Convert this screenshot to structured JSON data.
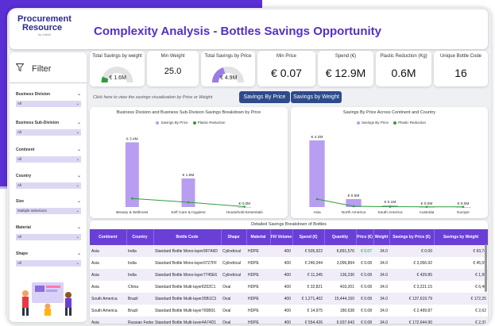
{
  "header": {
    "logo_line1": "Procurement",
    "logo_line2": "Resource",
    "logo_line3": "by Infiniti",
    "title": "Complexity Analysis - Bottles Savings Opportunity"
  },
  "filters": {
    "title": "Filter",
    "groups": [
      {
        "label": "Business Division",
        "value": "All"
      },
      {
        "label": "Business Sub-Division",
        "value": "All"
      },
      {
        "label": "Continent",
        "value": "All"
      },
      {
        "label": "Country",
        "value": "All"
      },
      {
        "label": "Size",
        "value": "Multiple selections"
      },
      {
        "label": "Material",
        "value": "All"
      },
      {
        "label": "Shape",
        "value": "All"
      }
    ]
  },
  "kpis": [
    {
      "label": "Total Savings by weight",
      "value": "€ 1.6M",
      "gauge": 0.12
    },
    {
      "label": "Min Weight",
      "value": "25.0"
    },
    {
      "label": "Total Savings by Price",
      "value": "€ 4.9M",
      "gauge": 0.4
    },
    {
      "label": "Min Price",
      "value": "€ 0.07"
    },
    {
      "label": "Spend (€)",
      "value": "€ 12.9M"
    },
    {
      "label": "Plastic Reduction (Kg)",
      "value": "0.6M"
    },
    {
      "label": "Unique Bottle Code",
      "value": "16"
    }
  ],
  "toolbar": {
    "hint": "Click here to view the savings visualization by Price or Weight",
    "by_price": "Savings By Price",
    "by_weight": "Savings by Weight"
  },
  "colors": {
    "bar": "#b79ef0",
    "line": "#2e9e3a",
    "accent": "#6a3fd6"
  },
  "chart_data": [
    {
      "type": "bar",
      "title": "Business Division and Business Sub-Division Savings Breakdown by Price",
      "legend": [
        "Savings By Price",
        "Plastic Reduction"
      ],
      "categories": [
        "Beauty & Wellness",
        "Self Care & Hygiene",
        "Household Essentials"
      ],
      "series": [
        {
          "name": "Savings By Price",
          "values": [
            3.4,
            1.5,
            0.0
          ],
          "labels": [
            "€ 3.4M",
            "€ 1.5M",
            "€ 0.0M"
          ]
        },
        {
          "name": "Plastic Reduction",
          "values": [
            0.45,
            0.25,
            0.02
          ]
        }
      ],
      "ylim": [
        0,
        4.0
      ]
    },
    {
      "type": "bar",
      "title": "Savings By Price Across Continent and Country",
      "legend": [
        "Savings By Price",
        "Plastic Reduction"
      ],
      "categories": [
        "Asia",
        "North America",
        "South America",
        "Australia",
        "Europe"
      ],
      "series": [
        {
          "name": "Savings By Price",
          "values": [
            4.2,
            0.5,
            0.1,
            0.0,
            0.0
          ],
          "labels": [
            "€ 4.2M",
            "€ 0.5M",
            "€ 0.1M",
            "€ 0.0M",
            "€ 0.0M"
          ]
        },
        {
          "name": "Plastic Reduction",
          "values": [
            0.5,
            0.05,
            0.02,
            0.01,
            0.01
          ]
        }
      ],
      "ylim": [
        0,
        4.8
      ]
    }
  ],
  "table": {
    "title": "Detailed Savings Breakdown of Bottles",
    "columns": [
      "Continent",
      "Country",
      "Bottle Code",
      "Shape",
      "Material",
      "Fill Volume",
      "Spend (€)",
      "Quantity",
      "Price (€)",
      "Weight",
      "Savings by Price (€)",
      "Savings by Weight"
    ],
    "rows": [
      [
        "Asia",
        "India",
        "Standard Bottle Mono-layer997A9D",
        "Cylindrical",
        "HDPE",
        "400",
        "€ 505,922",
        "6,891,576",
        "€ 0.07",
        "34.0",
        "€ 0.00",
        "€ 93,74"
      ],
      [
        "Asia",
        "India",
        "Standard Bottle Mono-layer0727FF",
        "Cylindrical",
        "HDPE",
        "400",
        "€ 246,044",
        "3,096,894",
        "€ 0.08",
        "34.0",
        "€ 3,056.92",
        "€ 45,59"
      ],
      [
        "Asia",
        "India",
        "Standard Bottle Mono-layer7745E6",
        "Cylindrical",
        "HDPE",
        "400",
        "€ 11,345",
        "136,236",
        "€ 0.08",
        "34.0",
        "€ 429.85",
        "€ 1,99"
      ],
      [
        "Asia",
        "China",
        "Standard Bottle Multi-layer8202C1",
        "Oval",
        "HDPE",
        "400",
        "€ 32,821",
        "403,201",
        "€ 0.08",
        "34.0",
        "€ 3,221.15",
        "€ 6,40"
      ],
      [
        "South America",
        "Brazil",
        "Standard Bottle Multi-layer35B1C3",
        "Oval",
        "HDPE",
        "400",
        "€ 1,271,402",
        "15,444,150",
        "€ 0.08",
        "34.0",
        "€ 137,619.79",
        "€ 172,25"
      ],
      [
        "South America",
        "Brazil",
        "Standard Bottle Multi-layer765B01",
        "Oval",
        "HDPE",
        "400",
        "€ 14,975",
        "180,638",
        "€ 0.08",
        "34.0",
        "€ 2,499.87",
        "€ 2,62"
      ],
      [
        "Asia",
        "Russian Federation",
        "Standard Bottle Multi-layer4A74D1",
        "Oval",
        "HDPE",
        "400",
        "€ 554,426",
        "6,937,643",
        "€ 0.08",
        "34.0",
        "€ 172,644.90",
        "€ 2,31"
      ]
    ]
  }
}
